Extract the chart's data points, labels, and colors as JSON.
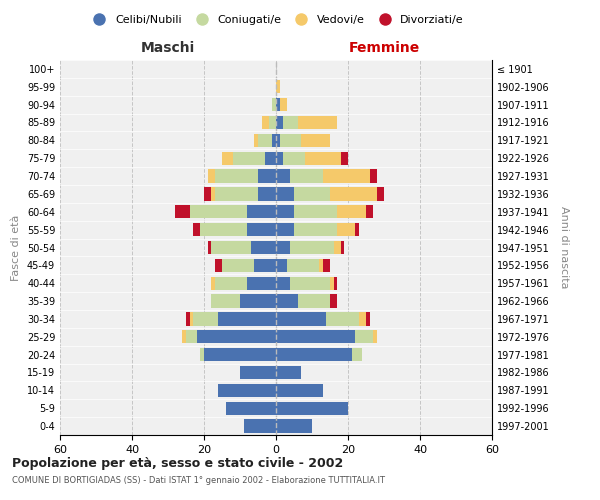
{
  "age_groups": [
    "0-4",
    "5-9",
    "10-14",
    "15-19",
    "20-24",
    "25-29",
    "30-34",
    "35-39",
    "40-44",
    "45-49",
    "50-54",
    "55-59",
    "60-64",
    "65-69",
    "70-74",
    "75-79",
    "80-84",
    "85-89",
    "90-94",
    "95-99",
    "100+"
  ],
  "birth_years": [
    "1997-2001",
    "1992-1996",
    "1987-1991",
    "1982-1986",
    "1977-1981",
    "1972-1976",
    "1967-1971",
    "1962-1966",
    "1957-1961",
    "1952-1956",
    "1947-1951",
    "1942-1946",
    "1937-1941",
    "1932-1936",
    "1927-1931",
    "1922-1926",
    "1917-1921",
    "1912-1916",
    "1907-1911",
    "1902-1906",
    "≤ 1901"
  ],
  "male": {
    "celibi": [
      9,
      14,
      16,
      10,
      20,
      22,
      16,
      10,
      8,
      6,
      7,
      8,
      8,
      5,
      5,
      3,
      1,
      0,
      0,
      0,
      0
    ],
    "coniugati": [
      0,
      0,
      0,
      0,
      1,
      3,
      7,
      8,
      9,
      9,
      11,
      13,
      16,
      12,
      12,
      9,
      4,
      2,
      1,
      0,
      0
    ],
    "vedovi": [
      0,
      0,
      0,
      0,
      0,
      1,
      1,
      0,
      1,
      0,
      0,
      0,
      0,
      1,
      2,
      3,
      1,
      2,
      0,
      0,
      0
    ],
    "divorziati": [
      0,
      0,
      0,
      0,
      0,
      0,
      1,
      0,
      0,
      2,
      1,
      2,
      4,
      2,
      0,
      0,
      0,
      0,
      0,
      0,
      0
    ]
  },
  "female": {
    "nubili": [
      10,
      20,
      13,
      7,
      21,
      22,
      14,
      6,
      4,
      3,
      4,
      5,
      5,
      5,
      4,
      2,
      1,
      2,
      1,
      0,
      0
    ],
    "coniugate": [
      0,
      0,
      0,
      0,
      3,
      5,
      9,
      9,
      11,
      9,
      12,
      12,
      12,
      10,
      9,
      6,
      6,
      4,
      0,
      0,
      0
    ],
    "vedove": [
      0,
      0,
      0,
      0,
      0,
      1,
      2,
      0,
      1,
      1,
      2,
      5,
      8,
      13,
      13,
      10,
      8,
      11,
      2,
      1,
      0
    ],
    "divorziate": [
      0,
      0,
      0,
      0,
      0,
      0,
      1,
      2,
      1,
      2,
      1,
      1,
      2,
      2,
      2,
      2,
      0,
      0,
      0,
      0,
      0
    ]
  },
  "colors": {
    "celibi_nubili": "#4a72b0",
    "coniugati": "#c5d9a0",
    "vedovi": "#f5c96a",
    "divorziati": "#c0112b"
  },
  "xlim": 60,
  "title": "Popolazione per età, sesso e stato civile - 2002",
  "subtitle": "COMUNE DI BORTIGIADAS (SS) - Dati ISTAT 1° gennaio 2002 - Elaborazione TUTTITALIA.IT",
  "ylabel_left": "Fasce di età",
  "ylabel_right": "Anni di nascita",
  "xlabel_left": "Maschi",
  "xlabel_right": "Femmine",
  "legend_labels": [
    "Celibi/Nubili",
    "Coniugati/e",
    "Vedovi/e",
    "Divorziati/e"
  ],
  "bg_color": "#f0f0f0"
}
